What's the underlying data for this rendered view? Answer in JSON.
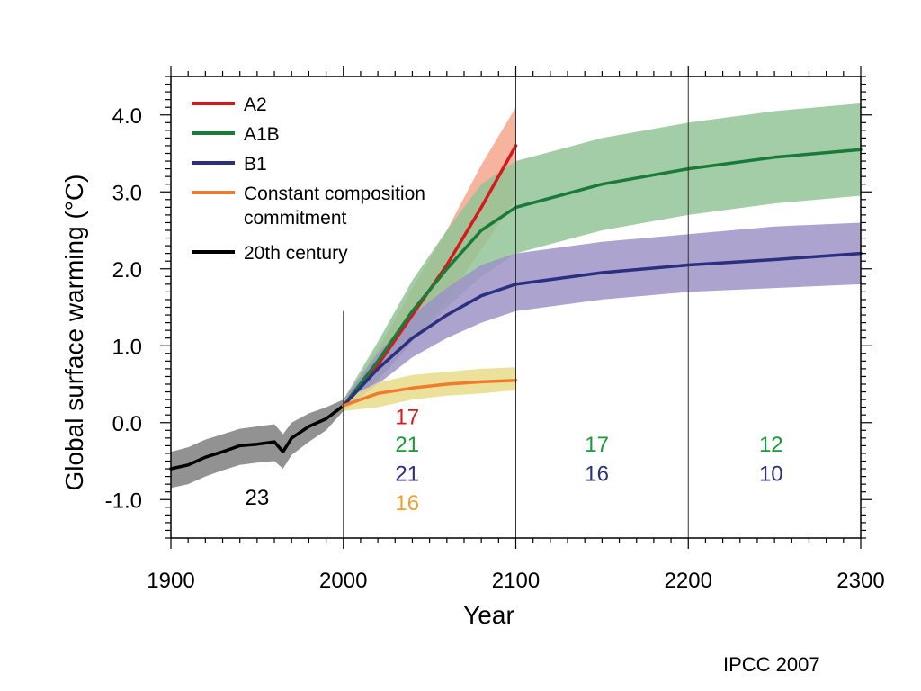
{
  "credit": "IPCC 2007",
  "chart_data": {
    "type": "line",
    "title": "",
    "xlabel": "Year",
    "ylabel": "Global surface warming (°C)",
    "xlim": [
      1900,
      2300
    ],
    "ylim": [
      -1.5,
      4.5
    ],
    "x_ticks": [
      1900,
      2000,
      2100,
      2200,
      2300
    ],
    "x_tick_labels": [
      "1900",
      "2000",
      "2100",
      "2200",
      "2300"
    ],
    "y_ticks": [
      -1.0,
      0.0,
      1.0,
      2.0,
      3.0,
      4.0
    ],
    "y_tick_labels": [
      "-1.0",
      "0.0",
      "1.0",
      "2.0",
      "3.0",
      "4.0"
    ],
    "vertical_lines": [
      2000,
      2100,
      2200
    ],
    "grid": false,
    "legend_position": "top-left",
    "legend": [
      {
        "label": "A2",
        "color": "#d7191c"
      },
      {
        "label": "A1B",
        "color": "#1a7a3a"
      },
      {
        "label": "B1",
        "color": "#2a2f7f"
      },
      {
        "label": "Constant composition",
        "label2": "commitment",
        "color": "#f07b2c"
      },
      {
        "label": "20th century",
        "color": "#000000"
      }
    ],
    "series": [
      {
        "name": "20th century",
        "color": "#000000",
        "band_color": "#7f7f7f",
        "x": [
          1900,
          1910,
          1920,
          1930,
          1940,
          1950,
          1960,
          1965,
          1970,
          1980,
          1990,
          2000
        ],
        "y": [
          -0.6,
          -0.55,
          -0.45,
          -0.38,
          -0.3,
          -0.28,
          -0.25,
          -0.38,
          -0.2,
          -0.05,
          0.05,
          0.22
        ],
        "lower": [
          -0.85,
          -0.8,
          -0.7,
          -0.62,
          -0.55,
          -0.52,
          -0.5,
          -0.6,
          -0.42,
          -0.25,
          -0.1,
          0.15
        ],
        "upper": [
          -0.38,
          -0.32,
          -0.22,
          -0.15,
          -0.08,
          -0.05,
          -0.02,
          -0.15,
          0.0,
          0.12,
          0.2,
          0.3
        ]
      },
      {
        "name": "A2",
        "color": "#d7191c",
        "band_color": "#f5a68c",
        "x": [
          2000,
          2020,
          2040,
          2060,
          2080,
          2100
        ],
        "y": [
          0.22,
          0.75,
          1.4,
          2.05,
          2.8,
          3.6
        ],
        "lower": [
          0.15,
          0.55,
          1.05,
          1.6,
          2.25,
          2.9
        ],
        "upper": [
          0.3,
          0.95,
          1.75,
          2.5,
          3.35,
          4.1
        ]
      },
      {
        "name": "A1B",
        "color": "#1a7a3a",
        "band_color": "#92c497",
        "x": [
          2000,
          2020,
          2040,
          2060,
          2080,
          2100,
          2150,
          2200,
          2250,
          2300
        ],
        "y": [
          0.22,
          0.8,
          1.45,
          2.0,
          2.5,
          2.8,
          3.1,
          3.3,
          3.45,
          3.55
        ],
        "lower": [
          0.15,
          0.55,
          1.05,
          1.5,
          1.9,
          2.2,
          2.5,
          2.7,
          2.85,
          2.95
        ],
        "upper": [
          0.3,
          1.05,
          1.85,
          2.5,
          3.1,
          3.4,
          3.7,
          3.9,
          4.05,
          4.15
        ]
      },
      {
        "name": "B1",
        "color": "#2a2f7f",
        "band_color": "#9d93c5",
        "x": [
          2000,
          2020,
          2040,
          2060,
          2080,
          2100,
          2150,
          2200,
          2250,
          2300
        ],
        "y": [
          0.22,
          0.7,
          1.1,
          1.4,
          1.65,
          1.8,
          1.95,
          2.05,
          2.12,
          2.2
        ],
        "lower": [
          0.15,
          0.5,
          0.85,
          1.1,
          1.3,
          1.45,
          1.6,
          1.7,
          1.75,
          1.8
        ],
        "upper": [
          0.3,
          0.9,
          1.4,
          1.75,
          2.05,
          2.2,
          2.35,
          2.45,
          2.55,
          2.6
        ]
      },
      {
        "name": "Constant composition commitment",
        "color": "#f07b2c",
        "band_color": "#e8dc8a",
        "x": [
          2000,
          2020,
          2040,
          2060,
          2080,
          2100
        ],
        "y": [
          0.22,
          0.38,
          0.45,
          0.5,
          0.53,
          0.55
        ],
        "lower": [
          0.15,
          0.2,
          0.3,
          0.35,
          0.38,
          0.42
        ],
        "upper": [
          0.3,
          0.52,
          0.62,
          0.66,
          0.7,
          0.72
        ]
      }
    ],
    "annotations": [
      {
        "text": "23",
        "x": 1950,
        "y": -1.07,
        "color": "#000000"
      },
      {
        "text": "17",
        "x": 2037,
        "y": -0.02,
        "color": "#d7191c"
      },
      {
        "text": "21",
        "x": 2037,
        "y": -0.38,
        "color": "#1a9a3a"
      },
      {
        "text": "21",
        "x": 2037,
        "y": -0.76,
        "color": "#2a2f7f"
      },
      {
        "text": "16",
        "x": 2037,
        "y": -1.14,
        "color": "#f0a030"
      },
      {
        "text": "17",
        "x": 2147,
        "y": -0.38,
        "color": "#1a9a3a"
      },
      {
        "text": "16",
        "x": 2147,
        "y": -0.76,
        "color": "#2a2f7f"
      },
      {
        "text": "12",
        "x": 2248,
        "y": -0.38,
        "color": "#1a9a3a"
      },
      {
        "text": "10",
        "x": 2248,
        "y": -0.76,
        "color": "#2a2f7f"
      }
    ]
  }
}
